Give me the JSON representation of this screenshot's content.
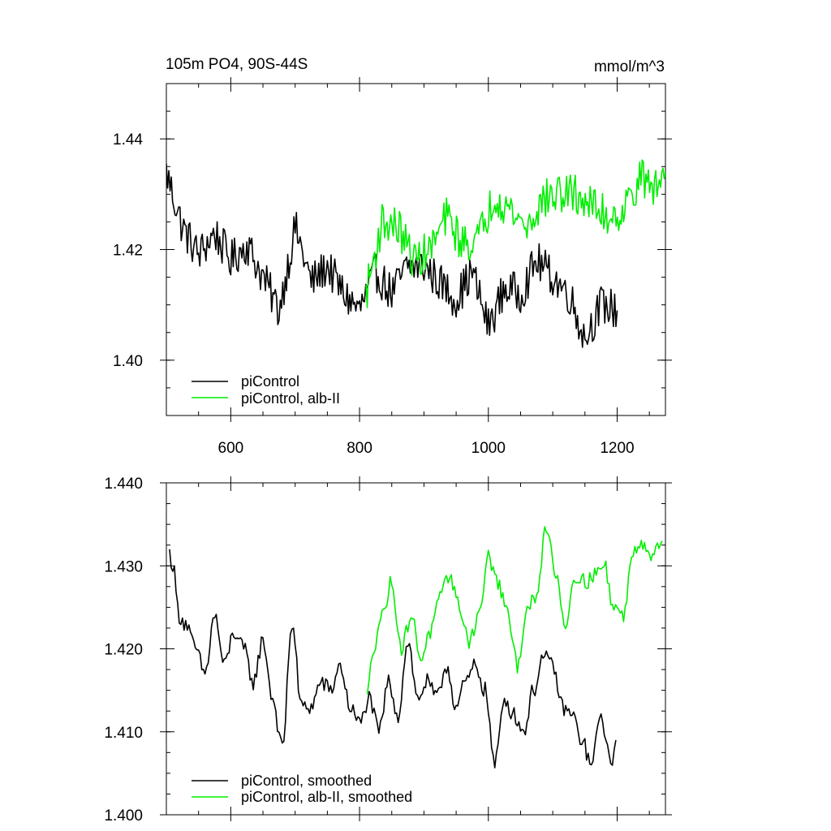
{
  "colors": {
    "control": "#000000",
    "albII": "#00ee00"
  },
  "chart_data": [
    {
      "type": "line",
      "title": "105m PO4, 90S-44S",
      "units": "mmol/m^3",
      "xlim": [
        500,
        1275
      ],
      "ylim": [
        1.39,
        1.45
      ],
      "x_ticks": [
        600,
        800,
        1000,
        1200
      ],
      "x_tick_labels": [
        "600",
        "800",
        "1000",
        "1200"
      ],
      "y_ticks": [
        1.4,
        1.42,
        1.44
      ],
      "y_tick_labels": [
        "1.40",
        "1.42",
        "1.44"
      ],
      "legend_position": "bottom-left",
      "series": [
        {
          "name": "piControl",
          "color": "#000000",
          "x": [
            500,
            525,
            550,
            575,
            600,
            625,
            650,
            675,
            700,
            725,
            750,
            775,
            800,
            825,
            850,
            875,
            900,
            925,
            950,
            975,
            1000,
            1025,
            1050,
            1075,
            1100,
            1125,
            1150,
            1175,
            1200
          ],
          "y": [
            1.434,
            1.424,
            1.419,
            1.423,
            1.418,
            1.421,
            1.415,
            1.409,
            1.424,
            1.414,
            1.417,
            1.412,
            1.409,
            1.416,
            1.412,
            1.417,
            1.417,
            1.414,
            1.411,
            1.416,
            1.406,
            1.413,
            1.412,
            1.418,
            1.415,
            1.412,
            1.404,
            1.41,
            1.409
          ]
        },
        {
          "name": "piControl, alb-II",
          "color": "#00ee00",
          "x": [
            810,
            835,
            860,
            885,
            910,
            935,
            960,
            985,
            1010,
            1035,
            1060,
            1085,
            1110,
            1135,
            1160,
            1185,
            1210,
            1235,
            1260,
            1275
          ],
          "y": [
            1.412,
            1.425,
            1.424,
            1.418,
            1.42,
            1.426,
            1.421,
            1.422,
            1.43,
            1.427,
            1.424,
            1.429,
            1.43,
            1.43,
            1.428,
            1.426,
            1.427,
            1.433,
            1.431,
            1.434
          ]
        }
      ]
    },
    {
      "type": "line",
      "title": "",
      "xlim": [
        500,
        1275
      ],
      "ylim": [
        1.4,
        1.44
      ],
      "x_ticks": [
        600,
        800,
        1000,
        1200
      ],
      "y_ticks": [
        1.4,
        1.41,
        1.42,
        1.43,
        1.44
      ],
      "y_tick_labels": [
        "1.400",
        "1.410",
        "1.420",
        "1.430",
        "1.440"
      ],
      "legend_position": "bottom-left",
      "series": [
        {
          "name": "piControl, smoothed",
          "color": "#000000",
          "x": [
            505,
            510,
            520,
            530,
            545,
            560,
            575,
            590,
            605,
            620,
            635,
            650,
            665,
            680,
            695,
            710,
            725,
            740,
            755,
            770,
            785,
            800,
            815,
            830,
            845,
            860,
            875,
            890,
            905,
            920,
            935,
            950,
            965,
            980,
            995,
            1010,
            1025,
            1040,
            1055,
            1070,
            1085,
            1100,
            1115,
            1130,
            1145,
            1160,
            1175,
            1190,
            1198
          ],
          "y": [
            1.4315,
            1.43,
            1.424,
            1.423,
            1.42,
            1.417,
            1.424,
            1.418,
            1.422,
            1.42,
            1.416,
            1.421,
            1.414,
            1.408,
            1.423,
            1.413,
            1.413,
            1.416,
            1.415,
            1.418,
            1.413,
            1.411,
            1.414,
            1.41,
            1.416,
            1.412,
            1.421,
            1.414,
            1.416,
            1.414,
            1.418,
            1.413,
            1.416,
            1.418,
            1.415,
            1.406,
            1.414,
            1.412,
            1.41,
            1.415,
            1.419,
            1.418,
            1.413,
            1.412,
            1.409,
            1.406,
            1.412,
            1.406,
            1.409
          ]
        },
        {
          "name": "piControl, alb-II, smoothed",
          "color": "#00ee00",
          "x": [
            812,
            820,
            835,
            850,
            865,
            880,
            895,
            910,
            925,
            940,
            955,
            970,
            985,
            1000,
            1015,
            1030,
            1045,
            1060,
            1075,
            1090,
            1105,
            1120,
            1135,
            1150,
            1165,
            1180,
            1195,
            1210,
            1225,
            1240,
            1255,
            1270
          ],
          "y": [
            1.414,
            1.42,
            1.424,
            1.428,
            1.42,
            1.424,
            1.419,
            1.422,
            1.426,
            1.429,
            1.425,
            1.421,
            1.424,
            1.431,
            1.428,
            1.424,
            1.418,
            1.425,
            1.426,
            1.435,
            1.429,
            1.423,
            1.429,
            1.428,
            1.429,
            1.43,
            1.425,
            1.424,
            1.432,
            1.433,
            1.431,
            1.433
          ]
        }
      ]
    }
  ]
}
